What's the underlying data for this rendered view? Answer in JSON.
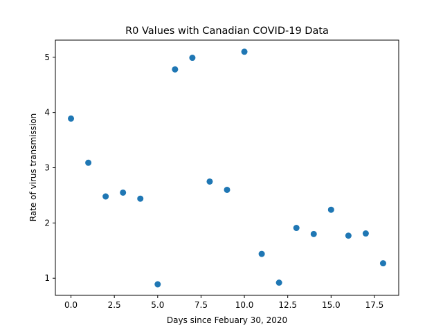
{
  "chart_data": {
    "type": "scatter",
    "title": "R0 Values with Canadian COVID-19 Data",
    "xlabel": "Days since Febuary 30, 2020",
    "ylabel": "Rate of virus transmission",
    "xlim": [
      -0.9,
      18.9
    ],
    "ylim": [
      0.69,
      5.31
    ],
    "x_ticks": [
      0,
      2.5,
      5,
      7.5,
      10,
      12.5,
      15,
      17.5
    ],
    "x_tick_labels": [
      "0.0",
      "2.5",
      "5.0",
      "7.5",
      "10.0",
      "12.5",
      "15.0",
      "17.5"
    ],
    "y_ticks": [
      1,
      2,
      3,
      4,
      5
    ],
    "y_tick_labels": [
      "1",
      "2",
      "3",
      "4",
      "5"
    ],
    "grid": false,
    "marker_color": "#1f77b4",
    "series": [
      {
        "x": [
          0,
          1,
          2,
          3,
          4,
          5,
          6,
          7,
          8,
          9,
          10,
          11,
          12,
          13,
          14,
          15,
          16,
          17,
          18
        ],
        "y": [
          3.89,
          3.09,
          2.48,
          2.55,
          2.44,
          0.89,
          4.78,
          4.99,
          2.75,
          2.6,
          5.1,
          1.44,
          0.92,
          1.91,
          1.8,
          2.24,
          1.77,
          1.81,
          1.27
        ]
      }
    ]
  }
}
